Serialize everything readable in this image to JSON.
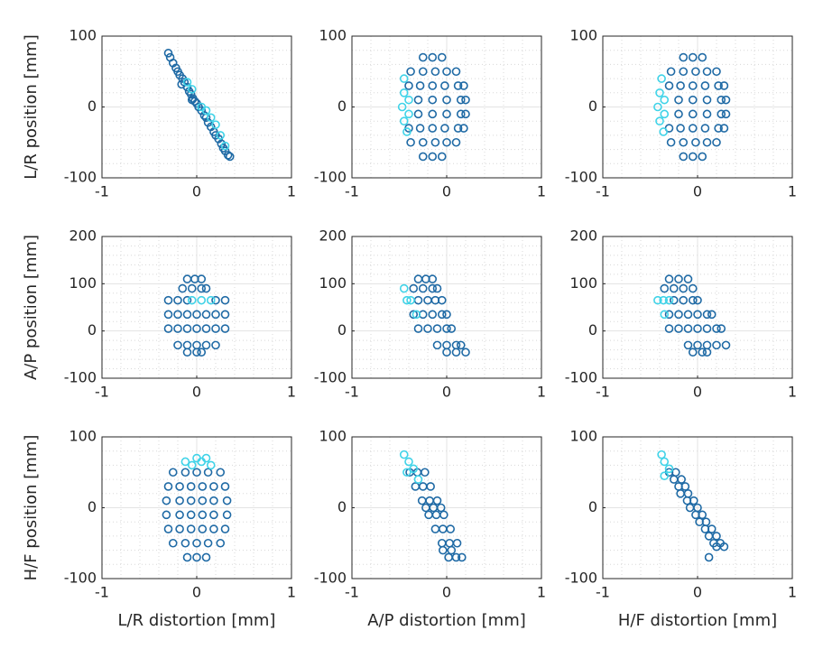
{
  "chart_data": [
    {
      "type": "scatter",
      "ylabel": "L/R position [mm]",
      "xlim": [
        -1,
        1
      ],
      "xticks": [
        -1,
        0,
        1
      ],
      "ylim": [
        -100,
        100
      ],
      "yticks": [
        -100,
        0,
        100
      ],
      "grid": true,
      "minor_grid": true,
      "series": [
        {
          "color": "#1f6aa5",
          "x": [
            -0.3,
            -0.28,
            -0.25,
            -0.22,
            -0.2,
            -0.18,
            -0.15,
            -0.13,
            -0.1,
            -0.08,
            -0.06,
            -0.04,
            -0.02,
            0,
            0.02,
            0.05,
            0.08,
            0.1,
            0.12,
            0.15,
            0.18,
            0.2,
            0.23,
            0.26,
            0.28,
            0.3,
            0.33,
            0.35,
            -0.16,
            -0.05
          ],
          "values": [
            76,
            70,
            62,
            55,
            50,
            45,
            40,
            35,
            28,
            22,
            18,
            12,
            8,
            5,
            0,
            -5,
            -12,
            -15,
            -22,
            -28,
            -35,
            -40,
            -45,
            -52,
            -58,
            -62,
            -68,
            -70,
            32,
            10
          ]
        },
        {
          "color": "#3fd3e8",
          "x": [
            -0.1,
            -0.05,
            0.05,
            0.1,
            0.15,
            0.2,
            0.25,
            0.3
          ],
          "values": [
            35,
            25,
            0,
            -5,
            -15,
            -25,
            -40,
            -55
          ]
        }
      ]
    },
    {
      "type": "scatter",
      "xlim": [
        -1,
        1
      ],
      "xticks": [
        -1,
        0,
        1
      ],
      "ylim": [
        -100,
        100
      ],
      "yticks": [
        -100,
        0,
        100
      ],
      "grid": true,
      "minor_grid": true,
      "series": [
        {
          "color": "#1f6aa5",
          "x": [
            -0.25,
            -0.15,
            -0.05,
            -0.25,
            -0.15,
            -0.05,
            -0.38,
            -0.25,
            -0.12,
            0,
            0.1,
            -0.38,
            -0.25,
            -0.12,
            0,
            0.1,
            -0.4,
            -0.28,
            -0.15,
            -0.02,
            0.12,
            0.18,
            -0.4,
            -0.28,
            -0.15,
            -0.02,
            0.12,
            0.18,
            -0.3,
            -0.15,
            0,
            0.15,
            0.2,
            -0.3,
            -0.15,
            0,
            0.15,
            0.2
          ],
          "values": [
            70,
            70,
            70,
            -70,
            -70,
            -70,
            50,
            50,
            50,
            50,
            50,
            -50,
            -50,
            -50,
            -50,
            -50,
            30,
            30,
            30,
            30,
            30,
            30,
            -30,
            -30,
            -30,
            -30,
            -30,
            -30,
            10,
            10,
            10,
            10,
            10,
            -10,
            -10,
            -10,
            -10,
            -10
          ]
        },
        {
          "color": "#3fd3e8",
          "x": [
            -0.45,
            -0.45,
            -0.47,
            -0.45,
            -0.42,
            -0.4,
            -0.4
          ],
          "values": [
            40,
            20,
            0,
            -20,
            -35,
            10,
            -10
          ]
        }
      ]
    },
    {
      "type": "scatter",
      "xlim": [
        -1,
        1
      ],
      "xticks": [
        -1,
        0,
        1
      ],
      "ylim": [
        -100,
        100
      ],
      "yticks": [
        -100,
        0,
        100
      ],
      "grid": true,
      "minor_grid": true,
      "series": [
        {
          "color": "#1f6aa5",
          "x": [
            -0.15,
            -0.05,
            0.05,
            -0.15,
            -0.05,
            0.05,
            -0.28,
            -0.15,
            -0.02,
            0.1,
            0.2,
            -0.28,
            -0.15,
            -0.02,
            0.1,
            0.2,
            -0.3,
            -0.18,
            -0.05,
            0.08,
            0.22,
            0.28,
            -0.3,
            -0.18,
            -0.05,
            0.08,
            0.22,
            0.28,
            -0.2,
            -0.05,
            0.1,
            0.25,
            0.3,
            -0.2,
            -0.05,
            0.1,
            0.25,
            0.3
          ],
          "values": [
            70,
            70,
            70,
            -70,
            -70,
            -70,
            50,
            50,
            50,
            50,
            50,
            -50,
            -50,
            -50,
            -50,
            -50,
            30,
            30,
            30,
            30,
            30,
            30,
            -30,
            -30,
            -30,
            -30,
            -30,
            -30,
            10,
            10,
            10,
            10,
            10,
            -10,
            -10,
            -10,
            -10,
            -10
          ]
        },
        {
          "color": "#3fd3e8",
          "x": [
            -0.38,
            -0.4,
            -0.42,
            -0.4,
            -0.36,
            -0.35,
            -0.35
          ],
          "values": [
            40,
            20,
            0,
            -20,
            -35,
            10,
            -10
          ]
        }
      ]
    },
    {
      "type": "scatter",
      "ylabel": "A/P position [mm]",
      "xlim": [
        -1,
        1
      ],
      "xticks": [
        -1,
        0,
        1
      ],
      "ylim": [
        -100,
        200
      ],
      "yticks": [
        -100,
        0,
        100,
        200
      ],
      "grid": true,
      "minor_grid": true,
      "series": [
        {
          "color": "#1f6aa5",
          "x": [
            -0.1,
            -0.02,
            0.05,
            -0.15,
            -0.05,
            0.05,
            0.1,
            -0.3,
            -0.2,
            -0.1,
            0.2,
            0.3,
            -0.3,
            -0.2,
            -0.1,
            0,
            0.1,
            0.2,
            0.3,
            -0.3,
            -0.2,
            -0.1,
            0,
            0.1,
            0.2,
            0.3,
            -0.2,
            -0.1,
            0,
            0.1,
            0.2,
            -0.1,
            0,
            0.05
          ],
          "values": [
            110,
            110,
            110,
            90,
            90,
            90,
            90,
            65,
            65,
            65,
            65,
            65,
            35,
            35,
            35,
            35,
            35,
            35,
            35,
            5,
            5,
            5,
            5,
            5,
            5,
            5,
            -30,
            -30,
            -30,
            -30,
            -30,
            -45,
            -45,
            -45
          ]
        },
        {
          "color": "#3fd3e8",
          "x": [
            -0.05,
            0.05,
            0.15
          ],
          "values": [
            65,
            65,
            65
          ]
        }
      ]
    },
    {
      "type": "scatter",
      "xlim": [
        -1,
        1
      ],
      "xticks": [
        -1,
        0,
        1
      ],
      "ylim": [
        -100,
        200
      ],
      "yticks": [
        -100,
        0,
        100,
        200
      ],
      "grid": true,
      "minor_grid": true,
      "series": [
        {
          "color": "#1f6aa5",
          "x": [
            -0.3,
            -0.22,
            -0.15,
            -0.35,
            -0.25,
            -0.15,
            -0.1,
            -0.3,
            -0.2,
            -0.12,
            -0.05,
            -0.35,
            -0.25,
            -0.15,
            -0.05,
            0,
            -0.3,
            -0.2,
            -0.1,
            0,
            0.05,
            -0.1,
            0,
            0.1,
            0.15,
            0,
            0.1,
            0.2
          ],
          "values": [
            110,
            110,
            110,
            90,
            90,
            90,
            90,
            65,
            65,
            65,
            65,
            35,
            35,
            35,
            35,
            35,
            5,
            5,
            5,
            5,
            5,
            -30,
            -30,
            -30,
            -30,
            -45,
            -45,
            -45
          ]
        },
        {
          "color": "#3fd3e8",
          "x": [
            -0.45,
            -0.42,
            -0.38,
            -0.32
          ],
          "values": [
            90,
            65,
            65,
            35
          ]
        }
      ]
    },
    {
      "type": "scatter",
      "xlim": [
        -1,
        1
      ],
      "xticks": [
        -1,
        0,
        1
      ],
      "ylim": [
        -100,
        200
      ],
      "yticks": [
        -100,
        0,
        100,
        200
      ],
      "grid": true,
      "minor_grid": true,
      "series": [
        {
          "color": "#1f6aa5",
          "x": [
            -0.3,
            -0.2,
            -0.1,
            -0.35,
            -0.25,
            -0.15,
            -0.05,
            -0.25,
            -0.15,
            -0.05,
            0,
            -0.3,
            -0.2,
            -0.1,
            0,
            0.1,
            0.15,
            -0.3,
            -0.2,
            -0.1,
            0,
            0.1,
            0.2,
            0.25,
            -0.1,
            0,
            0.1,
            0.2,
            0.3,
            -0.05,
            0.05,
            0.1
          ],
          "values": [
            110,
            110,
            110,
            90,
            90,
            90,
            90,
            65,
            65,
            65,
            65,
            35,
            35,
            35,
            35,
            35,
            35,
            5,
            5,
            5,
            5,
            5,
            5,
            5,
            -30,
            -30,
            -30,
            -30,
            -30,
            -45,
            -45,
            -45
          ]
        },
        {
          "color": "#3fd3e8",
          "x": [
            -0.42,
            -0.36,
            -0.3,
            -0.35
          ],
          "values": [
            65,
            65,
            65,
            35
          ]
        }
      ]
    },
    {
      "type": "scatter",
      "xlabel": "L/R distortion [mm]",
      "ylabel": "H/F position [mm]",
      "xlim": [
        -1,
        1
      ],
      "xticks": [
        -1,
        0,
        1
      ],
      "ylim": [
        -100,
        100
      ],
      "yticks": [
        -100,
        0,
        100
      ],
      "grid": true,
      "minor_grid": true,
      "series": [
        {
          "color": "#1f6aa5",
          "x": [
            -0.1,
            0,
            0.1,
            -0.25,
            -0.12,
            0,
            0.12,
            0.25,
            -0.25,
            -0.12,
            0,
            0.12,
            0.25,
            -0.3,
            -0.18,
            -0.06,
            0.06,
            0.18,
            0.3,
            -0.3,
            -0.18,
            -0.06,
            0.06,
            0.18,
            0.3,
            -0.32,
            -0.18,
            -0.06,
            0.06,
            0.18,
            0.32,
            -0.32,
            -0.18,
            -0.06,
            0.06,
            0.18,
            0.32
          ],
          "values": [
            -70,
            -70,
            -70,
            50,
            50,
            50,
            50,
            50,
            -50,
            -50,
            -50,
            -50,
            -50,
            30,
            30,
            30,
            30,
            30,
            30,
            -30,
            -30,
            -30,
            -30,
            -30,
            -30,
            10,
            10,
            10,
            10,
            10,
            10,
            -10,
            -10,
            -10,
            -10,
            -10,
            -10
          ]
        },
        {
          "color": "#3fd3e8",
          "x": [
            0,
            0.1,
            -0.05,
            0.05,
            0.15,
            -0.12
          ],
          "values": [
            70,
            70,
            60,
            65,
            60,
            65
          ]
        }
      ]
    },
    {
      "type": "scatter",
      "xlabel": "A/P distortion [mm]",
      "xlim": [
        -1,
        1
      ],
      "xticks": [
        -1,
        0,
        1
      ],
      "ylim": [
        -100,
        100
      ],
      "yticks": [
        -100,
        0,
        100
      ],
      "grid": true,
      "minor_grid": true,
      "series": [
        {
          "color": "#1f6aa5",
          "x": [
            -0.39,
            -0.31,
            -0.23,
            -0.33,
            -0.25,
            -0.17,
            -0.26,
            -0.18,
            -0.1,
            -0.19,
            -0.11,
            -0.03,
            -0.12,
            -0.04,
            0.04,
            -0.05,
            0.03,
            0.11,
            0.02,
            0.1,
            0.16,
            -0.22,
            -0.14,
            -0.06,
            -0.04,
            0.05
          ],
          "values": [
            50,
            50,
            50,
            30,
            30,
            30,
            10,
            10,
            10,
            -10,
            -10,
            -10,
            -30,
            -30,
            -30,
            -50,
            -50,
            -50,
            -70,
            -70,
            -70,
            0,
            0,
            0,
            -60,
            -60
          ]
        },
        {
          "color": "#3fd3e8",
          "x": [
            -0.45,
            -0.4,
            -0.35,
            -0.42,
            -0.3
          ],
          "values": [
            75,
            65,
            55,
            50,
            40
          ]
        }
      ]
    },
    {
      "type": "scatter",
      "xlabel": "H/F distortion [mm]",
      "xlim": [
        -1,
        1
      ],
      "xticks": [
        -1,
        0,
        1
      ],
      "ylim": [
        -100,
        100
      ],
      "yticks": [
        -100,
        0,
        100
      ],
      "grid": true,
      "minor_grid": true,
      "series": [
        {
          "color": "#1f6aa5",
          "x": [
            -0.3,
            -0.23,
            -0.2,
            -0.13,
            -0.11,
            -0.04,
            -0.02,
            0.05,
            0.08,
            0.15,
            0.17,
            0.24,
            0.12,
            0.28,
            0.2,
            -0.18,
            -0.1,
            -0.08,
            0,
            0.02,
            0.09,
            -0.25,
            -0.17,
            0.12,
            0.2
          ],
          "values": [
            50,
            50,
            30,
            30,
            10,
            10,
            -10,
            -10,
            -30,
            -30,
            -50,
            -50,
            -70,
            -55,
            -55,
            20,
            20,
            0,
            0,
            -20,
            -20,
            40,
            40,
            -40,
            -40
          ]
        },
        {
          "color": "#3fd3e8",
          "x": [
            -0.38,
            -0.35,
            -0.3,
            -0.35
          ],
          "values": [
            75,
            65,
            55,
            45
          ]
        }
      ]
    }
  ]
}
